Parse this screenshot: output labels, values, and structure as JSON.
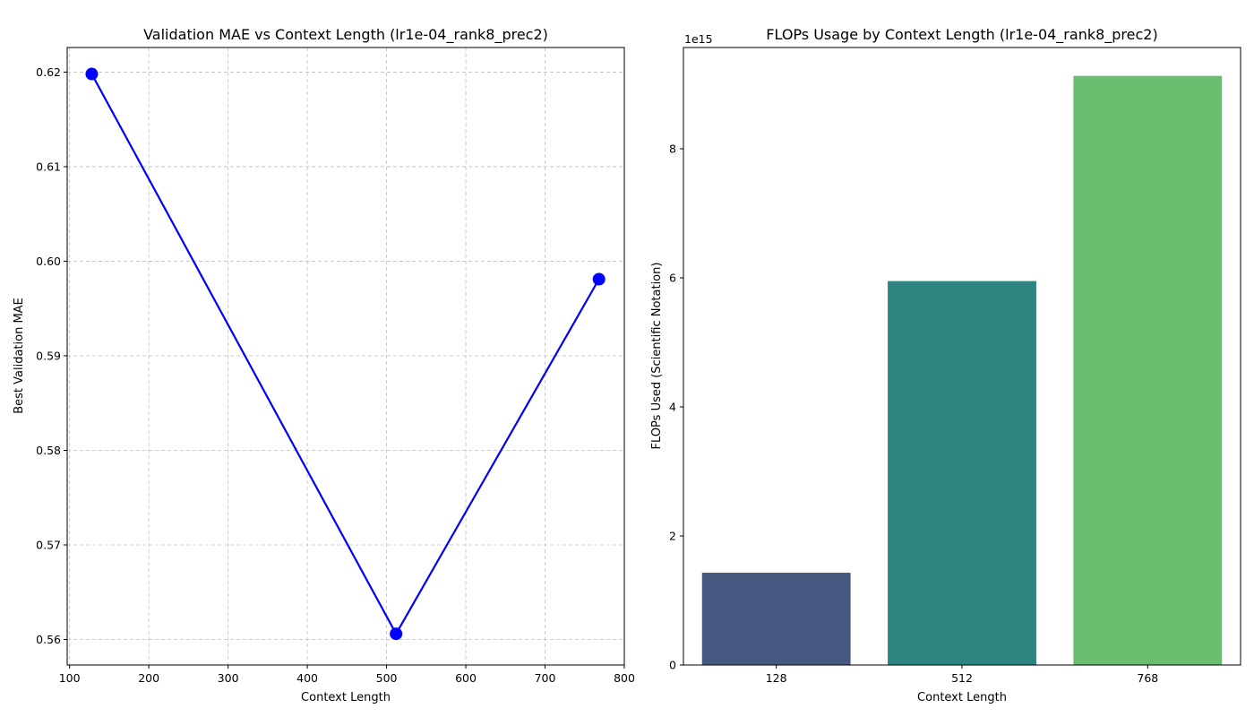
{
  "chart_data": [
    {
      "type": "line",
      "title": "Validation MAE vs Context Length (lr1e-04_rank8_prec2)",
      "xlabel": "Context Length",
      "ylabel": "Best Validation MAE",
      "xlim": [
        97,
        800
      ],
      "ylim": [
        0.5573,
        0.6226
      ],
      "xticks": [
        100,
        200,
        300,
        400,
        500,
        600,
        700,
        800
      ],
      "yticks": [
        0.56,
        0.57,
        0.58,
        0.59,
        0.6,
        0.61,
        0.62
      ],
      "ytick_labels": [
        "0.56",
        "0.57",
        "0.58",
        "0.59",
        "0.60",
        "0.61",
        "0.62"
      ],
      "grid": true,
      "series": [
        {
          "x": [
            128,
            512,
            768
          ],
          "y": [
            0.6198,
            0.5606,
            0.5981
          ],
          "color": "#0000ff",
          "marker": "circle"
        }
      ]
    },
    {
      "type": "bar",
      "title": "FLOPs Usage by Context Length (lr1e-04_rank8_prec2)",
      "xlabel": "Context Length",
      "ylabel": "FLOPs Used (Scientific Notation)",
      "offset_label": "1e15",
      "ylim": [
        0,
        9.57
      ],
      "yticks": [
        0,
        2,
        4,
        6,
        8
      ],
      "categories": [
        "128",
        "512",
        "768"
      ],
      "values": [
        1.43,
        5.95,
        9.13
      ],
      "colors": [
        "#46587f",
        "#2e8480",
        "#6abd6e"
      ],
      "grid": false
    }
  ]
}
